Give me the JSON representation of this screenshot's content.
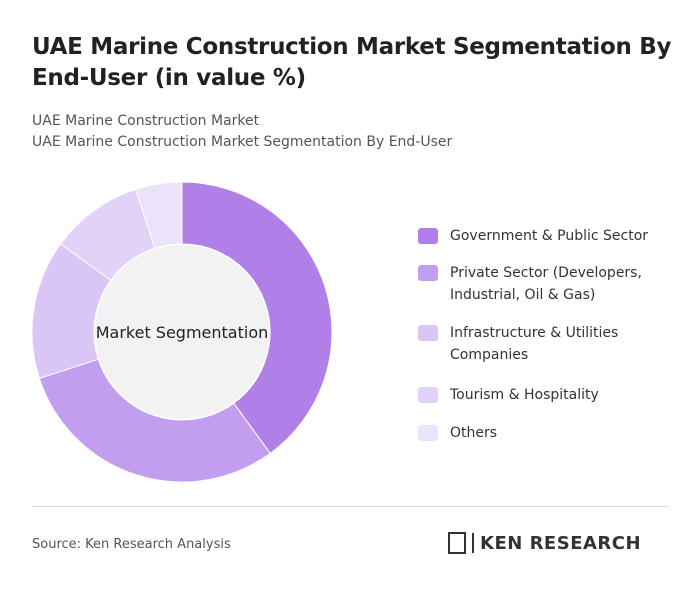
{
  "chart_data": {
    "type": "donut",
    "title": "UAE Marine Construction Market Segmentation By End-User (in value %)",
    "subtitle": [
      "UAE Marine Construction Market",
      "UAE Marine Construction Market Segmentation By End-User"
    ],
    "center_label": "Market Segmentation",
    "categories": [
      "Government & Public Sector",
      "Private Sector (Developers, Industrial, Oil & Gas)",
      "Infrastructure & Utilities Companies",
      "Tourism & Hospitality",
      "Others"
    ],
    "values": [
      40,
      30,
      15,
      10,
      5
    ],
    "colors": [
      "#b07fe8",
      "#c19ef0",
      "#dac5f7",
      "#e2d2f8",
      "#ece2fa"
    ],
    "source": "Source: Ken Research Analysis",
    "logo": "KEN RESEARCH"
  }
}
